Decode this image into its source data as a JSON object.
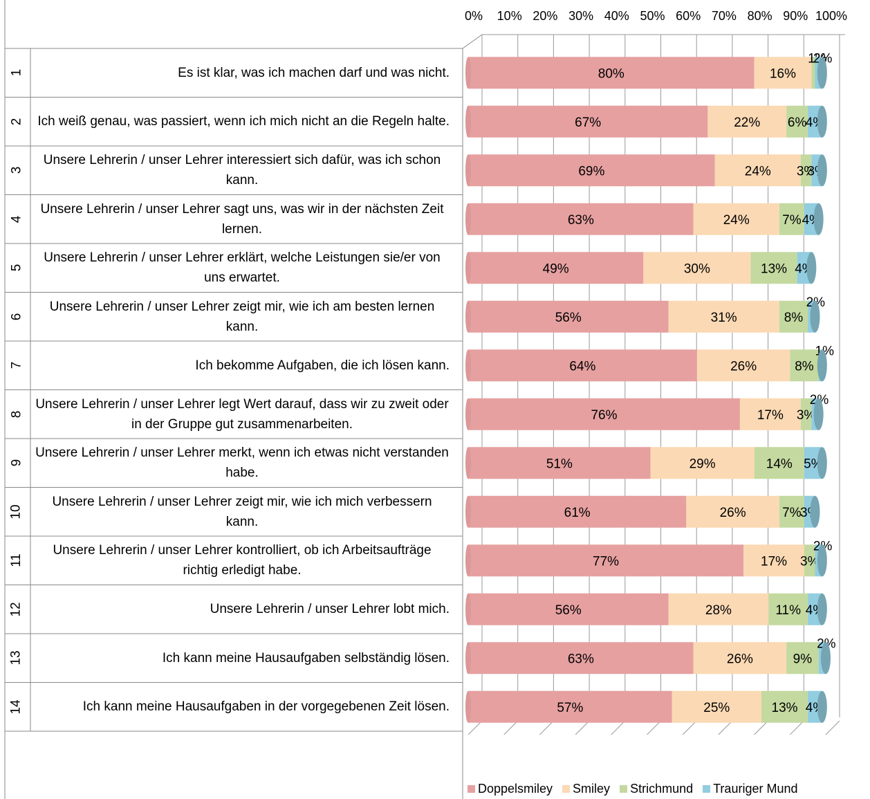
{
  "chart_data": {
    "type": "bar",
    "orientation": "horizontal",
    "stacked": "percent",
    "xlim": [
      0,
      100
    ],
    "x_ticks": [
      "0%",
      "10%",
      "20%",
      "30%",
      "40%",
      "50%",
      "60%",
      "70%",
      "80%",
      "90%",
      "100%"
    ],
    "legend_position": "bottom-right",
    "grid": true,
    "categories": [
      {
        "num": "1",
        "label": "Es ist klar, was ich machen darf und was nicht."
      },
      {
        "num": "2",
        "label": "Ich weiß genau, was passiert, wenn ich mich nicht an die Regeln halte."
      },
      {
        "num": "3",
        "label": "Unsere Lehrerin / unser Lehrer interessiert sich dafür, was ich schon kann."
      },
      {
        "num": "4",
        "label": "Unsere Lehrerin / unser Lehrer sagt uns, was wir in der nächsten Zeit lernen."
      },
      {
        "num": "5",
        "label": "Unsere Lehrerin / unser Lehrer erklärt, welche Leistungen sie/er von uns erwartet."
      },
      {
        "num": "6",
        "label": "Unsere Lehrerin / unser Lehrer zeigt mir, wie ich am besten lernen kann."
      },
      {
        "num": "7",
        "label": "Ich bekomme Aufgaben, die ich lösen kann."
      },
      {
        "num": "8",
        "label": "Unsere Lehrerin / unser Lehrer legt Wert darauf, dass wir zu zweit oder in der Gruppe gut zusammenarbeiten."
      },
      {
        "num": "9",
        "label": "Unsere Lehrerin / unser Lehrer merkt, wenn ich etwas nicht verstanden habe."
      },
      {
        "num": "10",
        "label": "Unsere Lehrerin / unser Lehrer zeigt mir, wie ich mich verbessern kann."
      },
      {
        "num": "11",
        "label": "Unsere Lehrerin / unser Lehrer kontrolliert, ob ich Arbeitsaufträge richtig erledigt habe."
      },
      {
        "num": "12",
        "label": "Unsere Lehrerin / unser Lehrer lobt mich."
      },
      {
        "num": "13",
        "label": "Ich kann meine Hausaufgaben selbständig lösen."
      },
      {
        "num": "14",
        "label": "Ich kann meine Hausaufgaben in der vorgegebenen Zeit lösen."
      }
    ],
    "series": [
      {
        "name": "Doppelsmiley",
        "color": "#e6a0a0",
        "values": [
          80,
          67,
          69,
          63,
          49,
          56,
          64,
          76,
          51,
          61,
          77,
          56,
          63,
          57
        ],
        "labels": [
          "80%",
          "67%",
          "69%",
          "63%",
          "49%",
          "56%",
          "64%",
          "76%",
          "51%",
          "61%",
          "77%",
          "56%",
          "63%",
          "57%"
        ]
      },
      {
        "name": "Smiley",
        "color": "#fbd9b4",
        "values": [
          16,
          22,
          24,
          24,
          30,
          31,
          26,
          17,
          29,
          26,
          17,
          28,
          26,
          25
        ],
        "labels": [
          "16%",
          "22%",
          "24%",
          "24%",
          "30%",
          "31%",
          "26%",
          "17%",
          "29%",
          "26%",
          "17%",
          "28%",
          "26%",
          "25%"
        ]
      },
      {
        "name": "Strichmund",
        "color": "#c4d9a0",
        "values": [
          1,
          6,
          3,
          7,
          13,
          8,
          8,
          3,
          14,
          7,
          3,
          11,
          9,
          13
        ],
        "labels": [
          "1%",
          "6%",
          "3%",
          "7%",
          "13%",
          "8%",
          "8%",
          "3%",
          "14%",
          "7%",
          "3%",
          "11%",
          "9%",
          "13%"
        ]
      },
      {
        "name": "Trauriger Mund",
        "color": "#92cde0",
        "values": [
          2,
          4,
          3,
          4,
          4,
          2,
          1,
          2,
          5,
          3,
          2,
          4,
          2,
          4
        ],
        "labels": [
          "2%",
          "4%",
          "3%",
          "4%",
          "4%",
          "2%",
          "1%",
          "2%",
          "5%",
          "3%",
          "2%",
          "4%",
          "2%",
          "4%"
        ]
      }
    ]
  }
}
